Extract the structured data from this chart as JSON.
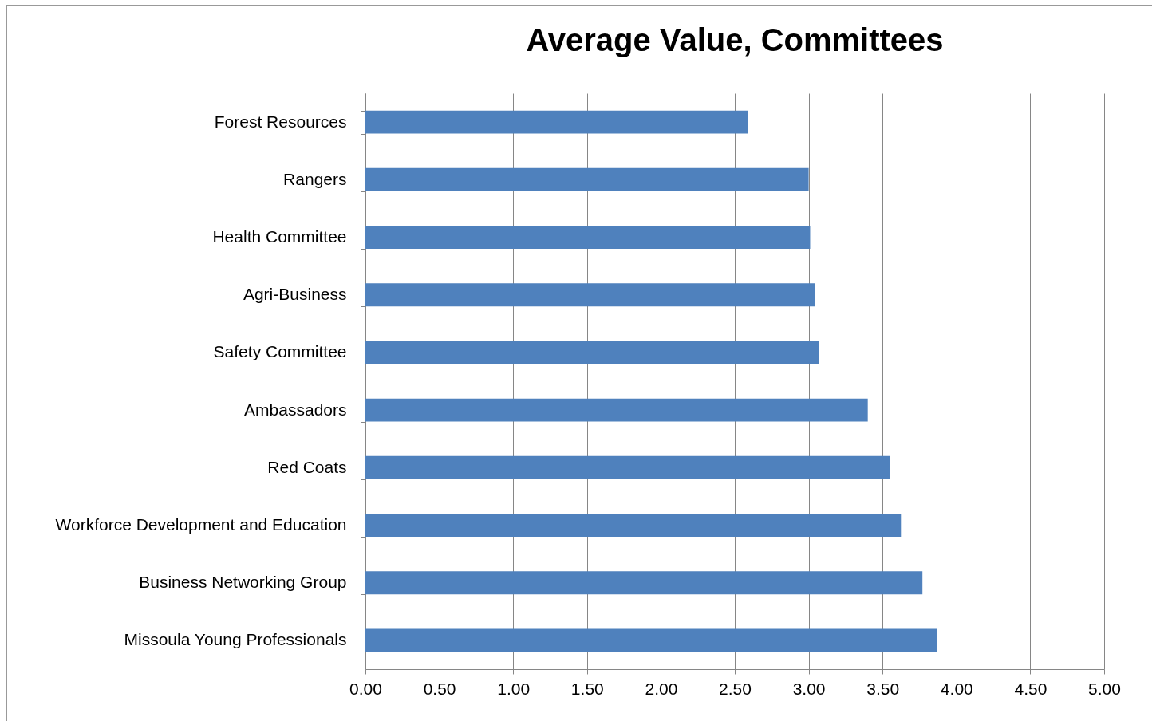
{
  "chart_data": {
    "type": "bar",
    "title": "Average Value, Committees",
    "orientation": "horizontal",
    "categories": [
      "Forest Resources",
      "Rangers",
      "Health Committee",
      "Agri-Business",
      "Safety Committee",
      "Ambassadors",
      "Red Coats",
      "Workforce Development and Education",
      "Business Networking Group",
      "Missoula Young Professionals"
    ],
    "values": [
      2.59,
      3.0,
      3.01,
      3.04,
      3.07,
      3.4,
      3.55,
      3.63,
      3.77,
      3.87
    ],
    "color": "#4f81bd",
    "xlim": [
      0,
      5
    ],
    "xticks": [
      {
        "value": 0,
        "label": "0.00"
      },
      {
        "value": 0.5,
        "label": "0.50"
      },
      {
        "value": 1,
        "label": "1.00"
      },
      {
        "value": 1.5,
        "label": "1.50"
      },
      {
        "value": 2,
        "label": "2.00"
      },
      {
        "value": 2.5,
        "label": "2.50"
      },
      {
        "value": 3,
        "label": "3.00"
      },
      {
        "value": 3.5,
        "label": "3.50"
      },
      {
        "value": 4,
        "label": "4.00"
      },
      {
        "value": 4.5,
        "label": "4.50"
      },
      {
        "value": 5,
        "label": "5.00"
      }
    ],
    "grid": "x"
  }
}
